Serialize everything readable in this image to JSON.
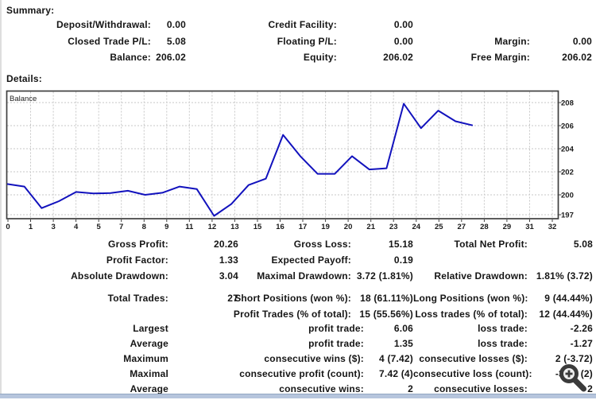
{
  "summary": {
    "title": "Summary:",
    "rows": [
      [
        {
          "label": "Deposit/Withdrawal:",
          "value": "0.00"
        },
        {
          "label": "Credit Facility:",
          "value": "0.00"
        },
        null
      ],
      [
        {
          "label": "Closed Trade P/L:",
          "value": "5.08"
        },
        {
          "label": "Floating P/L:",
          "value": "0.00"
        },
        {
          "label": "Margin:",
          "value": "0.00"
        }
      ],
      [
        {
          "label": "Balance:",
          "value": "206.02"
        },
        {
          "label": "Equity:",
          "value": "206.02"
        },
        {
          "label": "Free Margin:",
          "value": "206.02"
        }
      ]
    ]
  },
  "details": {
    "title": "Details:"
  },
  "chart_data": {
    "type": "line",
    "title": "Balance",
    "x": [
      0,
      1,
      2,
      3,
      4,
      5,
      6,
      7,
      8,
      9,
      10,
      11,
      12,
      13,
      14,
      15,
      16,
      17,
      18,
      19,
      20,
      21,
      22,
      23,
      24,
      25,
      26,
      27
    ],
    "values": [
      200.94,
      200.72,
      198.85,
      199.45,
      200.25,
      200.12,
      200.15,
      200.35,
      200.0,
      200.18,
      200.72,
      200.5,
      197.9,
      199.2,
      200.85,
      201.4,
      205.2,
      203.35,
      201.82,
      201.82,
      203.35,
      202.2,
      202.3,
      207.9,
      205.78,
      207.3,
      206.38,
      206.02
    ],
    "xlabel": "",
    "ylabel": "",
    "xlim": [
      0,
      32
    ],
    "ylim": [
      197,
      209
    ],
    "grid": true,
    "legend_position": "none",
    "line_color": "#1212bd",
    "x_tick_labels": [
      "0",
      "1",
      "3",
      "4",
      "5",
      "7",
      "8",
      "9",
      "11",
      "12",
      "13",
      "15",
      "16",
      "17",
      "19",
      "20",
      "21",
      "23",
      "24",
      "25",
      "27",
      "28",
      "29",
      "31",
      "32"
    ],
    "y_tick_labels": [
      "208",
      "206",
      "204",
      "202",
      "200",
      "197"
    ]
  },
  "stats": {
    "rows": [
      [
        "Gross Profit:",
        "20.26",
        "Gross Loss:",
        "15.18",
        "Total Net Profit:",
        "5.08"
      ],
      [
        "Profit Factor:",
        "1.33",
        "Expected Payoff:",
        "0.19",
        "",
        ""
      ],
      [
        "Absolute Drawdown:",
        "3.04",
        "Maximal Drawdown:",
        "3.72 (1.81%)",
        "Relative Drawdown:",
        "1.81% (3.72)"
      ],
      [
        "Total Trades:",
        "27",
        "Short Positions (won %):",
        "18 (61.11%)",
        "Long Positions (won %):",
        "9 (44.44%)"
      ],
      [
        "",
        "",
        "Profit Trades (% of total):",
        "15 (55.56%)",
        "Loss trades (% of total):",
        "12 (44.44%)"
      ],
      [
        "Largest",
        "",
        "profit trade:",
        "6.06",
        "loss trade:",
        "-2.26"
      ],
      [
        "Average",
        "",
        "profit trade:",
        "1.35",
        "loss trade:",
        "-1.27"
      ],
      [
        "Maximum",
        "",
        "consecutive wins ($):",
        "4 (7.42)",
        "consecutive losses ($):",
        "2 (-3.72)"
      ],
      [
        "Maximal",
        "",
        "consecutive profit (count):",
        "7.42 (4)",
        "consecutive loss (count):",
        "-3.72 (2)"
      ],
      [
        "Average",
        "",
        "consecutive wins:",
        "2",
        "consecutive losses:",
        "2"
      ]
    ]
  },
  "icons": {
    "bottom_right_cursor": "magnifier-plus-icon"
  }
}
